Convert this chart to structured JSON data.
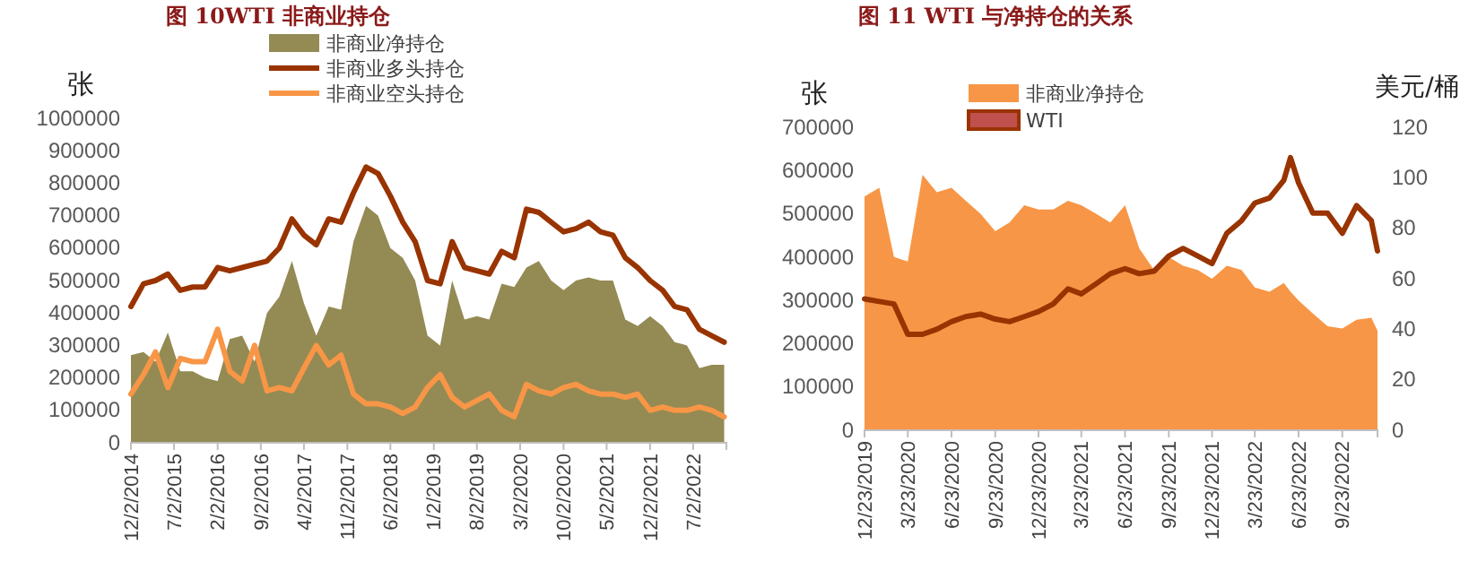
{
  "chart_data": [
    {
      "type": "area",
      "title": "图 10WTI 非商业持仓",
      "ylabel": "张",
      "legend": "top",
      "x": [
        "2014-12-02",
        "2015-02-02",
        "2015-04-02",
        "2015-06-02",
        "2015-08-02",
        "2015-10-02",
        "2015-12-02",
        "2016-02-02",
        "2016-04-02",
        "2016-06-02",
        "2016-08-02",
        "2016-10-02",
        "2016-12-02",
        "2017-02-02",
        "2017-04-02",
        "2017-06-02",
        "2017-08-02",
        "2017-10-02",
        "2017-12-02",
        "2018-02-02",
        "2018-04-02",
        "2018-06-02",
        "2018-08-02",
        "2018-10-02",
        "2018-12-02",
        "2019-02-02",
        "2019-04-02",
        "2019-06-02",
        "2019-08-02",
        "2019-10-02",
        "2019-12-02",
        "2020-02-02",
        "2020-04-02",
        "2020-06-02",
        "2020-08-02",
        "2020-10-02",
        "2020-12-02",
        "2021-02-02",
        "2021-04-02",
        "2021-06-02",
        "2021-08-02",
        "2021-10-02",
        "2021-12-02",
        "2022-02-02",
        "2022-04-02",
        "2022-06-02",
        "2022-08-02",
        "2022-10-02",
        "2022-12-02"
      ],
      "series": [
        {
          "name": "非商业净持仓",
          "type": "area",
          "color": "#948a54",
          "values": [
            270000,
            280000,
            250000,
            340000,
            220000,
            220000,
            200000,
            190000,
            320000,
            330000,
            250000,
            400000,
            450000,
            560000,
            430000,
            330000,
            420000,
            410000,
            620000,
            730000,
            700000,
            600000,
            570000,
            500000,
            330000,
            300000,
            500000,
            380000,
            390000,
            380000,
            490000,
            480000,
            540000,
            560000,
            500000,
            470000,
            500000,
            510000,
            500000,
            500000,
            380000,
            360000,
            390000,
            360000,
            310000,
            300000,
            230000,
            240000,
            240000
          ]
        },
        {
          "name": "非商业多头持仓",
          "type": "line",
          "color": "#993300",
          "values": [
            420000,
            490000,
            500000,
            520000,
            470000,
            480000,
            480000,
            540000,
            530000,
            540000,
            550000,
            560000,
            600000,
            690000,
            640000,
            610000,
            690000,
            680000,
            770000,
            850000,
            830000,
            760000,
            680000,
            620000,
            500000,
            490000,
            620000,
            540000,
            530000,
            520000,
            590000,
            570000,
            720000,
            710000,
            680000,
            650000,
            660000,
            680000,
            650000,
            640000,
            570000,
            540000,
            500000,
            470000,
            420000,
            410000,
            350000,
            330000,
            310000
          ]
        },
        {
          "name": "非商业空头持仓",
          "type": "line",
          "color": "#f79646",
          "values": [
            150000,
            210000,
            280000,
            170000,
            260000,
            250000,
            250000,
            350000,
            220000,
            190000,
            300000,
            160000,
            170000,
            160000,
            230000,
            300000,
            240000,
            270000,
            150000,
            120000,
            120000,
            110000,
            90000,
            110000,
            170000,
            210000,
            140000,
            110000,
            130000,
            150000,
            100000,
            80000,
            180000,
            160000,
            150000,
            170000,
            180000,
            160000,
            150000,
            150000,
            140000,
            150000,
            100000,
            110000,
            100000,
            100000,
            110000,
            100000,
            80000
          ]
        }
      ],
      "xlim": [
        "2014-12-02",
        "2022-12-13"
      ],
      "xticks": [
        {
          "value": "2014-12-02",
          "label": "12/2/2014"
        },
        {
          "value": "2015-07-02",
          "label": "7/2/2015"
        },
        {
          "value": "2016-02-02",
          "label": "2/2/2016"
        },
        {
          "value": "2016-09-02",
          "label": "9/2/2016"
        },
        {
          "value": "2017-04-02",
          "label": "4/2/2017"
        },
        {
          "value": "2017-11-02",
          "label": "11/2/2017"
        },
        {
          "value": "2018-06-02",
          "label": "6/2/2018"
        },
        {
          "value": "2019-01-02",
          "label": "1/2/2019"
        },
        {
          "value": "2019-08-02",
          "label": "8/2/2019"
        },
        {
          "value": "2020-03-02",
          "label": "3/2/2020"
        },
        {
          "value": "2020-10-02",
          "label": "10/2/2020"
        },
        {
          "value": "2021-05-02",
          "label": "5/2/2021"
        },
        {
          "value": "2021-12-02",
          "label": "12/2/2021"
        },
        {
          "value": "2022-07-02",
          "label": "7/2/2022"
        }
      ],
      "ylim": [
        0,
        1000000
      ],
      "yticks": [
        0,
        100000,
        200000,
        300000,
        400000,
        500000,
        600000,
        700000,
        800000,
        900000,
        1000000
      ]
    },
    {
      "type": "area",
      "title": "图 11 WTI 与净持仓的关系",
      "ylabel": "张",
      "y2label": "美元/桶",
      "legend": "top",
      "x": [
        "2019-12-23",
        "2020-01-23",
        "2020-02-23",
        "2020-03-23",
        "2020-04-23",
        "2020-05-23",
        "2020-06-23",
        "2020-07-23",
        "2020-08-23",
        "2020-09-23",
        "2020-10-23",
        "2020-11-23",
        "2020-12-23",
        "2021-01-23",
        "2021-02-23",
        "2021-03-23",
        "2021-04-23",
        "2021-05-23",
        "2021-06-23",
        "2021-07-23",
        "2021-08-23",
        "2021-09-23",
        "2021-10-23",
        "2021-11-23",
        "2021-12-23",
        "2022-01-23",
        "2022-02-23",
        "2022-03-23",
        "2022-04-23",
        "2022-05-23",
        "2022-06-06",
        "2022-06-23",
        "2022-07-23",
        "2022-08-23",
        "2022-09-23",
        "2022-10-23",
        "2022-11-23",
        "2022-12-06"
      ],
      "series": [
        {
          "name": "非商业净持仓",
          "type": "area",
          "color": "#f79646",
          "values": [
            540000,
            560000,
            400000,
            390000,
            590000,
            550000,
            560000,
            530000,
            500000,
            460000,
            480000,
            520000,
            510000,
            510000,
            530000,
            520000,
            500000,
            480000,
            520000,
            420000,
            370000,
            400000,
            380000,
            370000,
            350000,
            380000,
            370000,
            330000,
            320000,
            340000,
            320000,
            300000,
            270000,
            240000,
            235000,
            255000,
            260000,
            230000
          ]
        },
        {
          "name": "WTI",
          "type": "line",
          "axis": "y2",
          "color": "#993300",
          "values": [
            52,
            51,
            50,
            38,
            38,
            40,
            43,
            45,
            46,
            44,
            43,
            45,
            47,
            50,
            56,
            54,
            58,
            62,
            64,
            62,
            63,
            69,
            72,
            69,
            66,
            78,
            83,
            90,
            92,
            99,
            108,
            98,
            86,
            86,
            78,
            89,
            83,
            71
          ]
        }
      ],
      "xlim": [
        "2019-12-23",
        "2022-12-06"
      ],
      "xticks": [
        {
          "value": "2019-12-23",
          "label": "12/23/2019"
        },
        {
          "value": "2020-03-23",
          "label": "3/23/2020"
        },
        {
          "value": "2020-06-23",
          "label": "6/23/2020"
        },
        {
          "value": "2020-09-23",
          "label": "9/23/2020"
        },
        {
          "value": "2020-12-23",
          "label": "12/23/2020"
        },
        {
          "value": "2021-03-23",
          "label": "3/23/2021"
        },
        {
          "value": "2021-06-23",
          "label": "6/23/2021"
        },
        {
          "value": "2021-09-23",
          "label": "9/23/2021"
        },
        {
          "value": "2021-12-23",
          "label": "12/23/2021"
        },
        {
          "value": "2022-03-23",
          "label": "3/23/2022"
        },
        {
          "value": "2022-06-23",
          "label": "6/23/2022"
        },
        {
          "value": "2022-09-23",
          "label": "9/23/2022"
        }
      ],
      "ylim": [
        0,
        700000
      ],
      "yticks": [
        0,
        100000,
        200000,
        300000,
        400000,
        500000,
        600000,
        700000
      ],
      "y2lim": [
        0,
        120
      ],
      "y2ticks": [
        0,
        20,
        40,
        60,
        80,
        100,
        120
      ]
    }
  ]
}
